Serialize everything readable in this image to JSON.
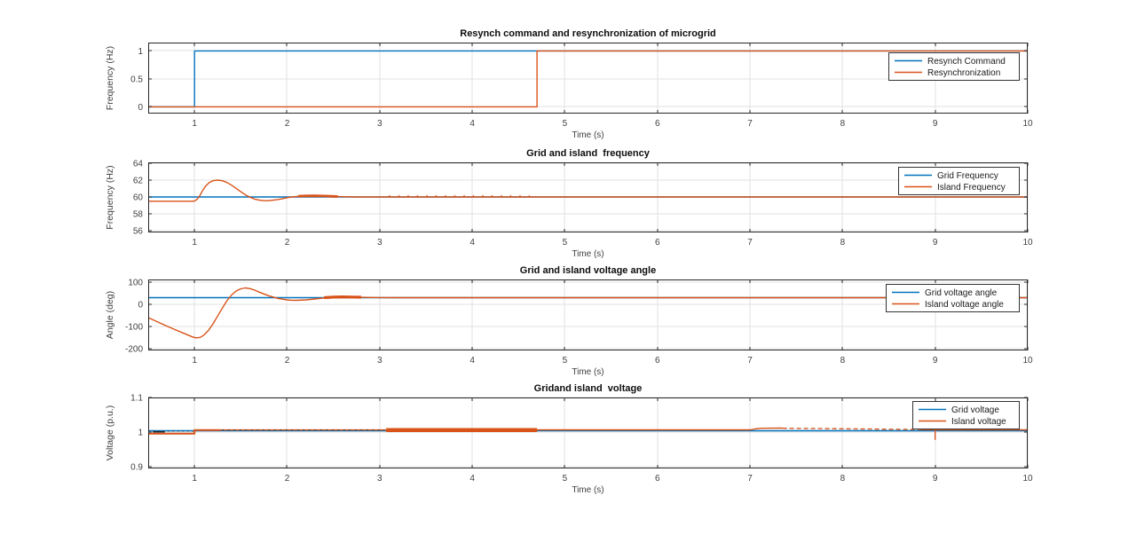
{
  "figure": {
    "background": "#ffffff",
    "axis_color": "#262626",
    "grid_color": "#e2e2e2",
    "tick_label_color": "#3f3f3f",
    "title_color": "#0d0d0d",
    "legend_border_color": "#333333",
    "legend_background": "#ffffff",
    "blue": "#0072BD",
    "orange": "#D95319"
  },
  "chart_data": [
    {
      "id": "resynch-command-plot",
      "type": "line",
      "title": "Resynch command and resynchronization of microgrid",
      "xlabel": "Time (s)",
      "ylabel": "Frequency (Hz)",
      "xlim": [
        0.5,
        10
      ],
      "ylim": [
        -0.12,
        1.15
      ],
      "grid": true,
      "legend_loc": "top-right",
      "xticks": [
        1,
        2,
        3,
        4,
        5,
        6,
        7,
        8,
        9,
        10
      ],
      "xtick_labels": [
        "1",
        "2",
        "3",
        "4",
        "5",
        "6",
        "7",
        "8",
        "9",
        "10"
      ],
      "yticks": [
        {
          "v": 0,
          "label": "0"
        },
        {
          "v": 0.5,
          "label": "0.5"
        },
        {
          "v": 1,
          "label": "1"
        }
      ],
      "legend": [
        "Resynch Command",
        "Resynchronization"
      ],
      "series": [
        {
          "name": "Resynch Command",
          "color": "#0072BD",
          "parts": [
            {
              "pts": [
                [
                  0.5,
                  0
                ],
                [
                  1,
                  0
                ],
                [
                  1,
                  1
                ],
                [
                  10,
                  1
                ]
              ],
              "width": 1.4
            }
          ]
        },
        {
          "name": "Resynchronization",
          "color": "#D95319",
          "parts": [
            {
              "pts": [
                [
                  0.5,
                  0
                ],
                [
                  4.7,
                  0
                ],
                [
                  4.7,
                  1
                ],
                [
                  10,
                  1
                ]
              ],
              "width": 1.4
            }
          ]
        }
      ]
    },
    {
      "id": "grid-island-frequency-plot",
      "type": "line",
      "title": "Grid and island  frequency",
      "xlabel": "Time (s)",
      "ylabel": "Frequency (Hz)",
      "xlim": [
        0.5,
        10
      ],
      "ylim": [
        55.8,
        64.1
      ],
      "grid": true,
      "legend_loc": "top-right",
      "xticks": [
        1,
        2,
        3,
        4,
        5,
        6,
        7,
        8,
        9,
        10
      ],
      "xtick_labels": [
        "1",
        "2",
        "3",
        "4",
        "5",
        "6",
        "7",
        "8",
        "9",
        "10"
      ],
      "yticks": [
        {
          "v": 56,
          "label": "56"
        },
        {
          "v": 58,
          "label": "58"
        },
        {
          "v": 60,
          "label": "60"
        },
        {
          "v": 62,
          "label": "62"
        },
        {
          "v": 64,
          "label": "64"
        }
      ],
      "legend": [
        "Grid Frequency",
        "Island Frequency"
      ],
      "series": [
        {
          "name": "Grid Frequency",
          "color": "#0072BD",
          "parts": [
            {
              "pts": [
                [
                  0.5,
                  60
                ],
                [
                  10,
                  60
                ]
              ],
              "width": 1.4
            }
          ]
        },
        {
          "name": "Island Frequency",
          "color": "#D95319",
          "parts": [
            {
              "pts": [
                [
                  0.5,
                  59.5
                ],
                [
                  0.98,
                  59.5
                ],
                [
                  1.0,
                  59.52
                ],
                [
                  1.03,
                  59.75
                ],
                [
                  1.06,
                  60.2
                ],
                [
                  1.09,
                  60.8
                ],
                [
                  1.12,
                  61.3
                ],
                [
                  1.16,
                  61.7
                ],
                [
                  1.2,
                  61.92
                ],
                [
                  1.25,
                  62.0
                ],
                [
                  1.3,
                  61.93
                ],
                [
                  1.35,
                  61.72
                ],
                [
                  1.4,
                  61.4
                ],
                [
                  1.45,
                  61.02
                ],
                [
                  1.5,
                  60.62
                ],
                [
                  1.55,
                  60.25
                ],
                [
                  1.6,
                  59.97
                ],
                [
                  1.65,
                  59.75
                ],
                [
                  1.7,
                  59.62
                ],
                [
                  1.75,
                  59.56
                ],
                [
                  1.8,
                  59.56
                ],
                [
                  1.85,
                  59.62
                ],
                [
                  1.9,
                  59.7
                ],
                [
                  1.95,
                  59.8
                ],
                [
                  2.0,
                  59.92
                ],
                [
                  2.05,
                  60.0
                ],
                [
                  2.12,
                  60.08
                ]
              ],
              "width": 1.4
            },
            {
              "pts": [
                [
                  2.12,
                  60.1
                ],
                [
                  2.2,
                  60.13
                ],
                [
                  2.3,
                  60.14
                ],
                [
                  2.4,
                  60.12
                ],
                [
                  2.5,
                  60.08
                ],
                [
                  2.55,
                  60.05
                ]
              ],
              "width": 2.8
            },
            {
              "pts": [
                [
                  2.55,
                  60.04
                ],
                [
                  2.75,
                  60.0
                ],
                [
                  10,
                  60.0
                ]
              ],
              "width": 1.4
            },
            {
              "pts": [
                [
                  3.1,
                  60.13
                ],
                [
                  4.62,
                  60.13
                ]
              ],
              "width": 1.4,
              "dash": "1.5 9"
            }
          ]
        }
      ]
    },
    {
      "id": "grid-island-voltage-angle-plot",
      "type": "line",
      "title": "Grid and island voltage angle",
      "xlabel": "Time (s)",
      "ylabel": "Angle (deg)",
      "xlim": [
        0.5,
        10
      ],
      "ylim": [
        -208,
        112
      ],
      "grid": true,
      "legend_loc": "top-right",
      "xticks": [
        1,
        2,
        3,
        4,
        5,
        6,
        7,
        8,
        9,
        10
      ],
      "xtick_labels": [
        "1",
        "2",
        "3",
        "4",
        "5",
        "6",
        "7",
        "8",
        "9",
        "10"
      ],
      "yticks": [
        {
          "v": -200,
          "label": "-200"
        },
        {
          "v": -100,
          "label": "-100"
        },
        {
          "v": 0,
          "label": "0"
        },
        {
          "v": 100,
          "label": "100"
        }
      ],
      "legend": [
        "Grid voltage angle",
        "Island voltage angle"
      ],
      "series": [
        {
          "name": "Grid voltage angle",
          "color": "#0072BD",
          "parts": [
            {
              "pts": [
                [
                  0.5,
                  30
                ],
                [
                  10,
                  30
                ]
              ],
              "width": 1.4
            }
          ]
        },
        {
          "name": "Island voltage angle",
          "color": "#D95319",
          "parts": [
            {
              "pts": [
                [
                  0.5,
                  -60
                ],
                [
                  0.6,
                  -79
                ],
                [
                  0.7,
                  -98
                ],
                [
                  0.8,
                  -116
                ],
                [
                  0.9,
                  -133
                ],
                [
                  0.98,
                  -147
                ],
                [
                  1.02,
                  -151
                ],
                [
                  1.06,
                  -149
                ],
                [
                  1.1,
                  -139
                ],
                [
                  1.15,
                  -118
                ],
                [
                  1.2,
                  -88
                ],
                [
                  1.25,
                  -53
                ],
                [
                  1.3,
                  -17
                ],
                [
                  1.35,
                  16
                ],
                [
                  1.4,
                  42
                ],
                [
                  1.45,
                  60
                ],
                [
                  1.5,
                  70
                ],
                [
                  1.55,
                  74
                ],
                [
                  1.6,
                  71
                ],
                [
                  1.65,
                  64
                ],
                [
                  1.7,
                  55
                ],
                [
                  1.8,
                  39
                ],
                [
                  1.9,
                  27
                ],
                [
                  2.0,
                  20
                ],
                [
                  2.05,
                  18.5
                ],
                [
                  2.1,
                  18
                ],
                [
                  2.2,
                  20
                ],
                [
                  2.3,
                  24
                ],
                [
                  2.4,
                  29
                ]
              ],
              "width": 1.4
            },
            {
              "pts": [
                [
                  2.4,
                  30
                ],
                [
                  2.5,
                  32.5
                ],
                [
                  2.6,
                  33.5
                ],
                [
                  2.7,
                  33
                ],
                [
                  2.8,
                  32
                ]
              ],
              "width": 3.2
            },
            {
              "pts": [
                [
                  2.8,
                  31.5
                ],
                [
                  3.0,
                  30.3
                ],
                [
                  3.2,
                  30
                ],
                [
                  10,
                  30
                ]
              ],
              "width": 1.4
            }
          ]
        }
      ]
    },
    {
      "id": "grid-island-voltage-plot",
      "type": "line",
      "title": "Gridand island  voltage",
      "xlabel": "Time (s)",
      "ylabel": "Voltage (p.u.)",
      "xlim": [
        0.5,
        10
      ],
      "ylim": [
        0.895,
        1.1
      ],
      "grid": true,
      "legend_loc": "top-right",
      "xticks": [
        1,
        2,
        3,
        4,
        5,
        6,
        7,
        8,
        9,
        10
      ],
      "xtick_labels": [
        "1",
        "2",
        "3",
        "4",
        "5",
        "6",
        "7",
        "8",
        "9",
        "10"
      ],
      "yticks": [
        {
          "v": 0.9,
          "label": "0.9"
        },
        {
          "v": 1,
          "label": "1"
        },
        {
          "v": 1.1,
          "label": "1.1"
        }
      ],
      "legend": [
        "Grid voltage",
        "Island voltage"
      ],
      "series": [
        {
          "name": "Grid voltage",
          "color": "#0072BD",
          "parts": [
            {
              "pts": [
                [
                  0.5,
                  1.004
                ],
                [
                  10,
                  1.004
                ]
              ],
              "width": 1.4
            },
            {
              "pts": [
                [
                  0.5,
                  1.0025
                ],
                [
                  1.0,
                  1.0025
                ]
              ],
              "width": 1,
              "dash": "1.5 4",
              "color": "#444444"
            },
            {
              "pts": [
                [
                  0.55,
                  1.0005
                ],
                [
                  0.68,
                  1.0005
                ]
              ],
              "width": 1.5,
              "color": "#222222"
            }
          ]
        },
        {
          "name": "Island voltage",
          "color": "#D95319",
          "parts": [
            {
              "pts": [
                [
                  0.5,
                  0.9955
                ],
                [
                  1.0,
                  0.9955
                ],
                [
                  1.0,
                  1.006
                ],
                [
                  1.28,
                  1.006
                ]
              ],
              "width": 2
            },
            {
              "pts": [
                [
                  1.28,
                  1.0062
                ],
                [
                  3.07,
                  1.0062
                ]
              ],
              "width": 1.4
            },
            {
              "pts": [
                [
                  1.3,
                  1.0065
                ],
                [
                  3.05,
                  1.0065
                ]
              ],
              "width": 1,
              "dash": "1.5 5",
              "color": "#333333"
            },
            {
              "pts": [
                [
                  3.07,
                  1.006
                ],
                [
                  4.7,
                  1.006
                ]
              ],
              "width": 4.5
            },
            {
              "pts": [
                [
                  4.7,
                  1.0065
                ],
                [
                  7.0,
                  1.0065
                ],
                [
                  7.05,
                  1.009
                ],
                [
                  7.12,
                  1.011
                ],
                [
                  7.35,
                  1.0115
                ]
              ],
              "width": 1.4
            },
            {
              "pts": [
                [
                  7.35,
                  1.011
                ],
                [
                  8.85,
                  1.0075
                ]
              ],
              "width": 1.4,
              "dash": "5 3"
            },
            {
              "pts": [
                [
                  8.85,
                  1.007
                ],
                [
                  9.0,
                  1.007
                ],
                [
                  9.0,
                  0.979
                ],
                [
                  9.0,
                  1.007
                ],
                [
                  10,
                  1.0065
                ]
              ],
              "width": 1.4
            }
          ]
        }
      ]
    }
  ]
}
